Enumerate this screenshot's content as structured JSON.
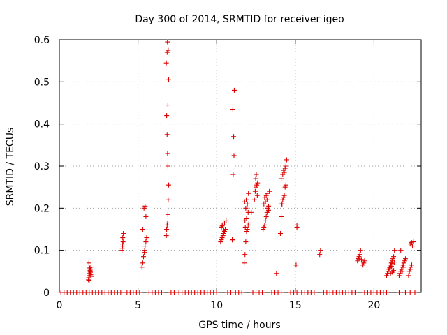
{
  "chart_data": {
    "type": "scatter",
    "title": "Day 300 of 2014, SRMTID for receiver igeo",
    "xlabel": "GPS time / hours",
    "ylabel": "SRMTID / TECUs",
    "xlim": [
      0,
      23
    ],
    "ylim": [
      0,
      0.6
    ],
    "x_ticks": [
      0,
      5,
      10,
      15,
      20
    ],
    "x_tick_labels": [
      "0",
      "5",
      "10",
      "15",
      "20"
    ],
    "y_ticks": [
      0,
      0.1,
      0.2,
      0.3,
      0.4,
      0.5,
      0.6
    ],
    "y_tick_labels": [
      "0",
      "0.1",
      "0.2",
      "0.3",
      "0.4",
      "0.5",
      "0.6"
    ],
    "grid": true,
    "marker": "plus",
    "color": "#dd0000",
    "series": [
      {
        "name": "SRMTID",
        "x": [
          0.1,
          0.3,
          0.5,
          0.7,
          0.9,
          1.1,
          1.3,
          1.5,
          1.7,
          1.9,
          2.1,
          2.3,
          2.5,
          2.7,
          2.9,
          3.1,
          3.3,
          3.5,
          3.7,
          3.9,
          4.3,
          4.5,
          4.7,
          4.9,
          5.1,
          5.7,
          5.9,
          6.1,
          6.3,
          6.5,
          7.1,
          7.3,
          7.6,
          7.8,
          8.0,
          8.2,
          8.4,
          8.6,
          8.8,
          9.0,
          9.2,
          9.4,
          9.6,
          9.8,
          10.0,
          10.7,
          10.9,
          11.2,
          11.4,
          11.6,
          12.3,
          12.5,
          12.7,
          12.9,
          13.5,
          13.7,
          13.9,
          14.1,
          14.7,
          14.9,
          15.1,
          15.4,
          15.6,
          15.8,
          16.0,
          16.2,
          16.8,
          17.0,
          17.2,
          17.4,
          17.6,
          17.8,
          18.0,
          18.2,
          18.4,
          18.6,
          18.8,
          19.4,
          19.6,
          19.8,
          20.0,
          20.2,
          20.4,
          20.6,
          20.8,
          21.6,
          22.0,
          22.3,
          22.6,
          1.85,
          1.87,
          1.9,
          1.92,
          1.95,
          1.97,
          2.0,
          1.88,
          1.93,
          1.98,
          2.02,
          1.9,
          1.95,
          2.0,
          3.98,
          4.0,
          4.02,
          4.05,
          4.03,
          4.07,
          4.0,
          5.25,
          5.3,
          5.35,
          5.4,
          5.42,
          5.45,
          5.5,
          5.55,
          5.3,
          5.5,
          5.38,
          5.45,
          6.8,
          6.82,
          6.85,
          6.88,
          6.9,
          6.92,
          6.95,
          6.9,
          6.88,
          6.85,
          6.82,
          6.9,
          6.95,
          6.8,
          6.85,
          6.92,
          6.87,
          10.25,
          10.3,
          10.35,
          10.4,
          10.45,
          10.5,
          10.55,
          10.3,
          10.4,
          10.5,
          10.6,
          10.35,
          10.45,
          11.0,
          11.05,
          11.1,
          11.08,
          11.03,
          11.12,
          11.0,
          11.0,
          11.75,
          11.8,
          11.85,
          11.9,
          11.95,
          12.0,
          12.05,
          11.8,
          11.9,
          12.0,
          11.85,
          11.95,
          11.78,
          11.88,
          12.02,
          11.82,
          12.2,
          12.4,
          12.45,
          12.5,
          12.55,
          12.6,
          12.48,
          12.52,
          12.58,
          12.95,
          13.0,
          13.05,
          13.1,
          13.15,
          13.2,
          13.25,
          13.3,
          13.0,
          13.1,
          13.2,
          13.05,
          13.15,
          13.25,
          13.35,
          13.3,
          13.8,
          14.05,
          14.1,
          14.15,
          14.2,
          14.25,
          14.3,
          14.35,
          14.4,
          14.1,
          14.2,
          14.3,
          14.25,
          14.35,
          14.4,
          14.45,
          14.15,
          15.05,
          15.1,
          15.1,
          16.55,
          16.6,
          18.95,
          19.0,
          19.05,
          19.1,
          19.15,
          19.3,
          19.35,
          19.4,
          19.0,
          19.2,
          20.8,
          20.85,
          20.9,
          20.95,
          21.0,
          21.05,
          21.1,
          21.15,
          21.2,
          21.25,
          21.3,
          20.9,
          21.0,
          21.1,
          21.2,
          21.3,
          21.05,
          21.15,
          21.25,
          21.6,
          21.65,
          21.7,
          21.75,
          21.8,
          21.85,
          21.9,
          21.95,
          22.0,
          21.7,
          21.8,
          21.9,
          22.2,
          22.25,
          22.3,
          22.35,
          22.4,
          22.45,
          22.5,
          22.3,
          22.4
        ],
        "y": [
          0,
          0,
          0,
          0,
          0,
          0,
          0,
          0,
          0,
          0,
          0,
          0,
          0,
          0,
          0,
          0,
          0,
          0,
          0,
          0,
          0,
          0,
          0,
          0,
          0,
          0,
          0,
          0,
          0,
          0,
          0,
          0,
          0,
          0,
          0,
          0,
          0,
          0,
          0,
          0,
          0,
          0,
          0,
          0,
          0,
          0,
          0,
          0,
          0,
          0,
          0,
          0,
          0,
          0,
          0,
          0,
          0,
          0,
          0,
          0,
          0,
          0,
          0,
          0,
          0,
          0,
          0,
          0,
          0,
          0,
          0,
          0,
          0,
          0,
          0,
          0,
          0,
          0,
          0,
          0,
          0,
          0,
          0,
          0,
          0,
          0,
          0,
          0,
          0,
          0.03,
          0.035,
          0.04,
          0.045,
          0.05,
          0.055,
          0.06,
          0.07,
          0.058,
          0.048,
          0.038,
          0.028,
          0.052,
          0.042,
          0.1,
          0.105,
          0.11,
          0.12,
          0.13,
          0.14,
          0.115,
          0.06,
          0.07,
          0.085,
          0.095,
          0.1,
          0.11,
          0.12,
          0.13,
          0.15,
          0.18,
          0.2,
          0.205,
          0.135,
          0.15,
          0.16,
          0.165,
          0.185,
          0.22,
          0.255,
          0.3,
          0.33,
          0.375,
          0.42,
          0.445,
          0.505,
          0.545,
          0.57,
          0.575,
          0.595,
          0.12,
          0.125,
          0.13,
          0.135,
          0.14,
          0.145,
          0.15,
          0.155,
          0.16,
          0.165,
          0.17,
          0.158,
          0.148,
          0.125,
          0.28,
          0.325,
          0.37,
          0.435,
          0.48,
          0.125,
          0.125,
          0.07,
          0.09,
          0.12,
          0.145,
          0.15,
          0.16,
          0.165,
          0.17,
          0.175,
          0.19,
          0.2,
          0.21,
          0.215,
          0.22,
          0.235,
          0.155,
          0.19,
          0.22,
          0.24,
          0.25,
          0.255,
          0.26,
          0.27,
          0.28,
          0.23,
          0.15,
          0.155,
          0.16,
          0.17,
          0.18,
          0.19,
          0.2,
          0.205,
          0.21,
          0.215,
          0.22,
          0.225,
          0.23,
          0.235,
          0.24,
          0.195,
          0.045,
          0.14,
          0.18,
          0.21,
          0.22,
          0.225,
          0.23,
          0.25,
          0.255,
          0.27,
          0.28,
          0.285,
          0.29,
          0.295,
          0.3,
          0.315,
          0.21,
          0.065,
          0.155,
          0.16,
          0.09,
          0.1,
          0.075,
          0.08,
          0.085,
          0.09,
          0.1,
          0.065,
          0.07,
          0.075,
          0.08,
          0.078,
          0.04,
          0.045,
          0.05,
          0.055,
          0.06,
          0.065,
          0.07,
          0.075,
          0.08,
          0.085,
          0.1,
          0.05,
          0.058,
          0.062,
          0.068,
          0.072,
          0.045,
          0.048,
          0.052,
          0.04,
          0.045,
          0.05,
          0.055,
          0.06,
          0.065,
          0.07,
          0.075,
          0.08,
          0.1,
          0.05,
          0.06,
          0.04,
          0.05,
          0.055,
          0.06,
          0.065,
          0.11,
          0.12,
          0.115,
          0.118
        ]
      }
    ]
  }
}
